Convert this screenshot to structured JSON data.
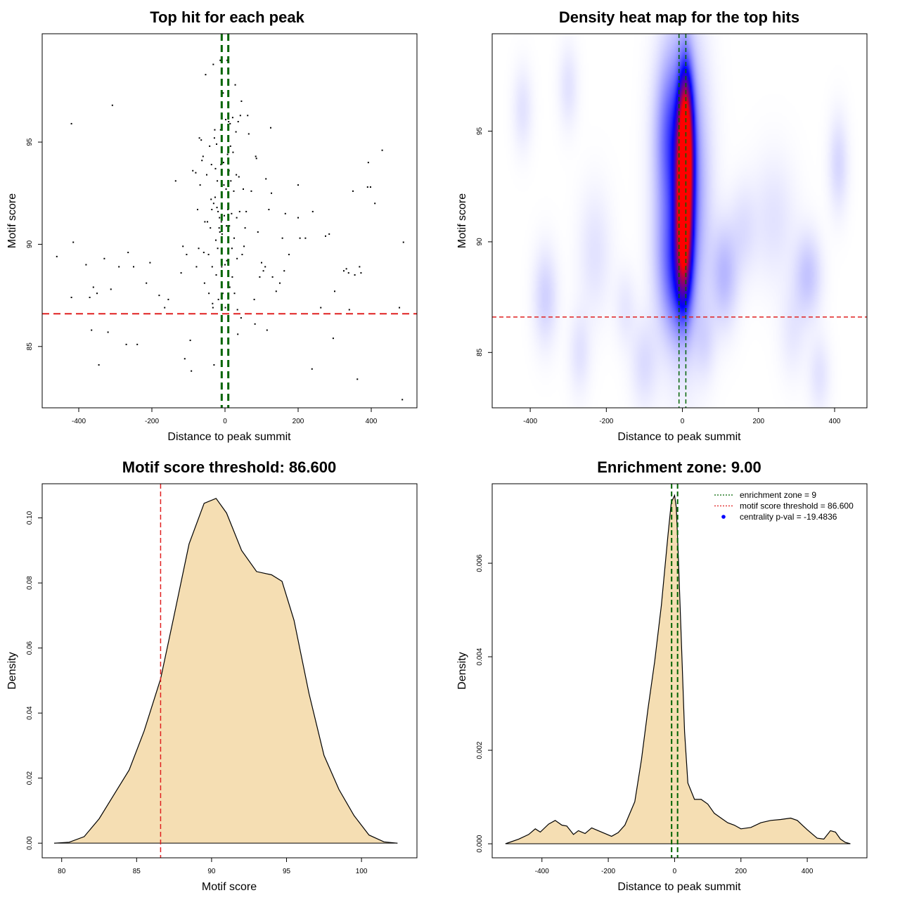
{
  "chart_data": [
    {
      "type": "scatter",
      "title": "Top hit for each peak",
      "xlabel": "Distance to peak summit",
      "ylabel": "Motif score",
      "xlim": [
        -500,
        525
      ],
      "ylim": [
        82,
        100.3
      ],
      "xticks": [
        -400,
        -200,
        0,
        200,
        400
      ],
      "yticks": [
        85,
        90,
        95
      ],
      "threshold": 86.6,
      "enrichment_zone": [
        -9,
        9
      ],
      "colors": {
        "points": "#000000",
        "threshold": "#e02020",
        "zone": "#006400"
      },
      "points": [
        [
          -460,
          89.4
        ],
        [
          -420,
          95.9
        ],
        [
          -420,
          87.4
        ],
        [
          -415,
          90.1
        ],
        [
          -380,
          89.0
        ],
        [
          -370,
          87.4
        ],
        [
          -365,
          85.8
        ],
        [
          -360,
          87.9
        ],
        [
          -350,
          87.6
        ],
        [
          -345,
          84.1
        ],
        [
          -330,
          89.3
        ],
        [
          -320,
          85.7
        ],
        [
          -312,
          87.8
        ],
        [
          -308,
          96.8
        ],
        [
          -290,
          88.9
        ],
        [
          -270,
          85.1
        ],
        [
          -265,
          89.6
        ],
        [
          -250,
          88.9
        ],
        [
          -240,
          85.1
        ],
        [
          -215,
          88.1
        ],
        [
          -205,
          89.1
        ],
        [
          -180,
          87.5
        ],
        [
          -165,
          86.9
        ],
        [
          -155,
          87.3
        ],
        [
          -135,
          93.1
        ],
        [
          -120,
          88.6
        ],
        [
          -115,
          89.9
        ],
        [
          -110,
          84.4
        ],
        [
          -105,
          89.5
        ],
        [
          -95,
          85.3
        ],
        [
          -92,
          83.8
        ],
        [
          -88,
          93.6
        ],
        [
          -80,
          93.5
        ],
        [
          -78,
          88.9
        ],
        [
          -75,
          91.7
        ],
        [
          -72,
          89.8
        ],
        [
          -70,
          95.2
        ],
        [
          -68,
          92.9
        ],
        [
          -65,
          95.1
        ],
        [
          -63,
          94.1
        ],
        [
          -60,
          94.3
        ],
        [
          -58,
          89.6
        ],
        [
          -56,
          88.1
        ],
        [
          -55,
          91.1
        ],
        [
          -53,
          98.3
        ],
        [
          -50,
          93.4
        ],
        [
          -48,
          91.1
        ],
        [
          -45,
          89.5
        ],
        [
          -44,
          87.6
        ],
        [
          -42,
          94.8
        ],
        [
          -40,
          90.8
        ],
        [
          -38,
          92.2
        ],
        [
          -37,
          93.9
        ],
        [
          -36,
          91.7
        ],
        [
          -35,
          88.9
        ],
        [
          -34,
          87.1
        ],
        [
          -33,
          86.9
        ],
        [
          -32,
          98.8
        ],
        [
          -31,
          92.0
        ],
        [
          -30,
          84.1
        ],
        [
          -29,
          95.2
        ],
        [
          -28,
          95.6
        ],
        [
          -27,
          92.3
        ],
        [
          -26,
          93.7
        ],
        [
          -25,
          90.2
        ],
        [
          -24,
          88.5
        ],
        [
          -23,
          94.9
        ],
        [
          -22,
          91.8
        ],
        [
          -21,
          93.1
        ],
        [
          -20,
          89.8
        ],
        [
          -19,
          91.6
        ],
        [
          -18,
          87.3
        ],
        [
          -16,
          90.8
        ],
        [
          -15,
          91.3
        ],
        [
          -14,
          90.6
        ],
        [
          -13,
          99.0
        ],
        [
          -12,
          95.6
        ],
        [
          -11,
          93.9
        ],
        [
          -10,
          91.1
        ],
        [
          -9,
          88.9
        ],
        [
          -8,
          90.5
        ],
        [
          -6,
          87.6
        ],
        [
          -5,
          97.4
        ],
        [
          -4,
          94.0
        ],
        [
          -3,
          92.9
        ],
        [
          -2,
          91.4
        ],
        [
          0,
          89.0
        ],
        [
          1,
          86.9
        ],
        [
          2,
          96.1
        ],
        [
          3,
          92.7
        ],
        [
          4,
          90.9
        ],
        [
          5,
          89.2
        ],
        [
          6,
          99.0
        ],
        [
          7,
          94.4
        ],
        [
          8,
          91.7
        ],
        [
          9,
          88.1
        ],
        [
          10,
          96.0
        ],
        [
          11,
          93.6
        ],
        [
          12,
          90.9
        ],
        [
          13,
          87.9
        ],
        [
          14,
          95.9
        ],
        [
          15,
          94.8
        ],
        [
          16,
          93.1
        ],
        [
          18,
          91.5
        ],
        [
          19,
          89.8
        ],
        [
          20,
          88.4
        ],
        [
          21,
          96.2
        ],
        [
          22,
          94.5
        ],
        [
          24,
          92.6
        ],
        [
          25,
          90.3
        ],
        [
          26,
          87.6
        ],
        [
          28,
          97.8
        ],
        [
          30,
          95.5
        ],
        [
          31,
          93.4
        ],
        [
          32,
          91.3
        ],
        [
          33,
          89.3
        ],
        [
          34,
          86.8
        ],
        [
          35,
          85.6
        ],
        [
          36,
          96.0
        ],
        [
          38,
          93.3
        ],
        [
          40,
          91.6
        ],
        [
          42,
          96.3
        ],
        [
          44,
          86.4
        ],
        [
          45,
          97.0
        ],
        [
          47,
          89.5
        ],
        [
          50,
          92.7
        ],
        [
          52,
          89.9
        ],
        [
          55,
          90.8
        ],
        [
          58,
          91.6
        ],
        [
          62,
          96.3
        ],
        [
          65,
          95.4
        ],
        [
          72,
          92.6
        ],
        [
          80,
          87.3
        ],
        [
          82,
          86.1
        ],
        [
          84,
          94.3
        ],
        [
          86,
          94.2
        ],
        [
          90,
          90.6
        ],
        [
          95,
          88.4
        ],
        [
          100,
          89.1
        ],
        [
          105,
          88.7
        ],
        [
          110,
          88.9
        ],
        [
          112,
          93.2
        ],
        [
          115,
          85.8
        ],
        [
          120,
          91.7
        ],
        [
          125,
          95.7
        ],
        [
          127,
          92.5
        ],
        [
          130,
          88.4
        ],
        [
          140,
          87.7
        ],
        [
          150,
          88.1
        ],
        [
          157,
          90.3
        ],
        [
          162,
          88.7
        ],
        [
          165,
          91.5
        ],
        [
          175,
          89.5
        ],
        [
          200,
          92.9
        ],
        [
          200,
          91.3
        ],
        [
          205,
          90.3
        ],
        [
          220,
          90.3
        ],
        [
          240,
          91.6
        ],
        [
          238,
          83.9
        ],
        [
          262,
          86.9
        ],
        [
          275,
          90.4
        ],
        [
          285,
          90.5
        ],
        [
          296,
          85.4
        ],
        [
          300,
          87.7
        ],
        [
          325,
          88.7
        ],
        [
          332,
          88.8
        ],
        [
          338,
          88.6
        ],
        [
          340,
          86.8
        ],
        [
          350,
          92.6
        ],
        [
          355,
          88.5
        ],
        [
          362,
          83.4
        ],
        [
          368,
          88.9
        ],
        [
          372,
          88.6
        ],
        [
          390,
          92.8
        ],
        [
          392,
          94.0
        ],
        [
          398,
          92.8
        ],
        [
          410,
          92.0
        ],
        [
          430,
          94.6
        ],
        [
          477,
          86.9
        ],
        [
          485,
          82.4
        ],
        [
          488,
          90.1
        ]
      ]
    },
    {
      "type": "heatmap",
      "title": "Density heat map for the top hits",
      "xlabel": "Distance to peak summit",
      "ylabel": "Motif score",
      "xlim": [
        -500,
        485
      ],
      "ylim": [
        82.5,
        99.4
      ],
      "xticks": [
        -400,
        -200,
        0,
        200,
        400
      ],
      "yticks": [
        85,
        90,
        95
      ],
      "threshold": 86.6,
      "enrichment_zone": [
        -9,
        9
      ],
      "colors": {
        "low": "#ffffff",
        "mid": "#0000ff",
        "high": "#ff0000",
        "threshold": "#e02020",
        "zone": "#006400"
      },
      "blobs": [
        {
          "x": 8,
          "y": 94.6,
          "sx": 13,
          "sy": 2.0,
          "w": 1.0
        },
        {
          "x": 4,
          "y": 91.0,
          "sx": 14,
          "sy": 2.2,
          "w": 1.0
        },
        {
          "x": 0,
          "y": 92.5,
          "sx": 40,
          "sy": 4.2,
          "w": 0.32
        },
        {
          "x": -30,
          "y": 95.0,
          "sx": 28,
          "sy": 2.2,
          "w": 0.16
        },
        {
          "x": -30,
          "y": 89.0,
          "sx": 30,
          "sy": 2.0,
          "w": 0.12
        },
        {
          "x": -10,
          "y": 88.0,
          "sx": 22,
          "sy": 1.5,
          "w": 0.1
        },
        {
          "x": 110,
          "y": 88.5,
          "sx": 25,
          "sy": 1.6,
          "w": 0.12
        },
        {
          "x": 330,
          "y": 88.5,
          "sx": 25,
          "sy": 1.3,
          "w": 0.1
        },
        {
          "x": 410,
          "y": 93.5,
          "sx": 18,
          "sy": 1.5,
          "w": 0.07
        },
        {
          "x": -360,
          "y": 87.5,
          "sx": 22,
          "sy": 1.5,
          "w": 0.08
        },
        {
          "x": -300,
          "y": 97.0,
          "sx": 18,
          "sy": 1.3,
          "w": 0.05
        },
        {
          "x": -420,
          "y": 96.0,
          "sx": 18,
          "sy": 1.3,
          "w": 0.05
        },
        {
          "x": -100,
          "y": 84.5,
          "sx": 25,
          "sy": 1.4,
          "w": 0.06
        },
        {
          "x": -230,
          "y": 89.5,
          "sx": 30,
          "sy": 2.0,
          "w": 0.05
        },
        {
          "x": -270,
          "y": 85.0,
          "sx": 20,
          "sy": 1.3,
          "w": 0.05
        },
        {
          "x": 240,
          "y": 91.0,
          "sx": 40,
          "sy": 2.0,
          "w": 0.05
        },
        {
          "x": 290,
          "y": 86.0,
          "sx": 25,
          "sy": 1.5,
          "w": 0.04
        },
        {
          "x": 360,
          "y": 84.0,
          "sx": 20,
          "sy": 1.2,
          "w": 0.05
        },
        {
          "x": 160,
          "y": 90.5,
          "sx": 25,
          "sy": 1.5,
          "w": 0.05
        },
        {
          "x": 60,
          "y": 85.5,
          "sx": 20,
          "sy": 1.2,
          "w": 0.05
        },
        {
          "x": -150,
          "y": 87.0,
          "sx": 20,
          "sy": 1.2,
          "w": 0.04
        }
      ]
    },
    {
      "type": "area",
      "title": "Motif score threshold: 86.600",
      "xlabel": "Motif score",
      "ylabel": "Density",
      "xlim": [
        78.7,
        103.7
      ],
      "ylim": [
        -0.0045,
        0.1105
      ],
      "xticks": [
        80,
        85,
        90,
        95,
        100
      ],
      "yticks": [
        0.0,
        0.02,
        0.04,
        0.06,
        0.08,
        0.1
      ],
      "ytick_labels": [
        "0.00",
        "0.02",
        "0.04",
        "0.06",
        "0.08",
        "0.10"
      ],
      "threshold": 86.6,
      "colors": {
        "fill": "#f5deb3",
        "line": "#000000",
        "threshold": "#e02020"
      },
      "x": [
        79.5,
        80.5,
        81.5,
        82.5,
        83.5,
        84.5,
        85.5,
        86.6,
        87.5,
        88.5,
        89.5,
        90.3,
        91.0,
        92.0,
        93.0,
        94.0,
        94.7,
        95.5,
        96.5,
        97.5,
        98.5,
        99.5,
        100.5,
        101.5,
        102.4
      ],
      "y": [
        0.0,
        0.0003,
        0.002,
        0.0075,
        0.015,
        0.0225,
        0.0345,
        0.0505,
        0.07,
        0.092,
        0.1045,
        0.106,
        0.1015,
        0.09,
        0.0835,
        0.0825,
        0.0805,
        0.0685,
        0.046,
        0.027,
        0.0165,
        0.0085,
        0.0025,
        0.0004,
        0.0
      ]
    },
    {
      "type": "area",
      "title": "Enrichment zone: 9.00",
      "xlabel": "Distance to peak summit",
      "ylabel": "Density",
      "xlim": [
        -550,
        580
      ],
      "ylim": [
        -0.0003,
        0.0077
      ],
      "xticks": [
        -400,
        -200,
        0,
        200,
        400
      ],
      "yticks": [
        0.0,
        0.002,
        0.004,
        0.006
      ],
      "ytick_labels": [
        "0.000",
        "0.002",
        "0.004",
        "0.006"
      ],
      "enrichment_zone": [
        -9,
        9
      ],
      "colors": {
        "fill": "#f5deb3",
        "line": "#000000",
        "zone": "#006400",
        "threshold": "#e02020",
        "pval": "#0000ff"
      },
      "legend": [
        {
          "label": "enrichment zone = 9",
          "style": "dotted-line",
          "color": "#006400"
        },
        {
          "label": "motif score threshold = 86.600",
          "style": "dotted-line",
          "color": "#e02020"
        },
        {
          "label": "centrality p-val = -19.4836",
          "style": "point",
          "color": "#0000ff"
        }
      ],
      "x": [
        -510,
        -470,
        -440,
        -420,
        -405,
        -380,
        -360,
        -340,
        -325,
        -305,
        -290,
        -270,
        -250,
        -230,
        -210,
        -190,
        -170,
        -150,
        -120,
        -100,
        -80,
        -60,
        -40,
        -20,
        -10,
        0,
        5,
        10,
        20,
        30,
        40,
        60,
        80,
        100,
        120,
        140,
        160,
        180,
        200,
        230,
        260,
        290,
        320,
        350,
        370,
        400,
        430,
        450,
        470,
        485,
        500,
        515,
        530
      ],
      "y": [
        0.0,
        0.0001,
        0.0002,
        0.00032,
        0.00025,
        0.00042,
        0.0005,
        0.0004,
        0.00038,
        0.0002,
        0.00028,
        0.00022,
        0.00034,
        0.00028,
        0.00022,
        0.00016,
        0.00024,
        0.0004,
        0.0009,
        0.0018,
        0.0029,
        0.0039,
        0.0051,
        0.0066,
        0.0073,
        0.00745,
        0.0072,
        0.0064,
        0.0044,
        0.0024,
        0.0013,
        0.00095,
        0.00095,
        0.00085,
        0.00065,
        0.00055,
        0.00045,
        0.0004,
        0.00032,
        0.00035,
        0.00045,
        0.0005,
        0.00052,
        0.00055,
        0.0005,
        0.0003,
        0.00012,
        0.0001,
        0.00028,
        0.00025,
        0.0001,
        3e-05,
        0.0
      ]
    }
  ]
}
